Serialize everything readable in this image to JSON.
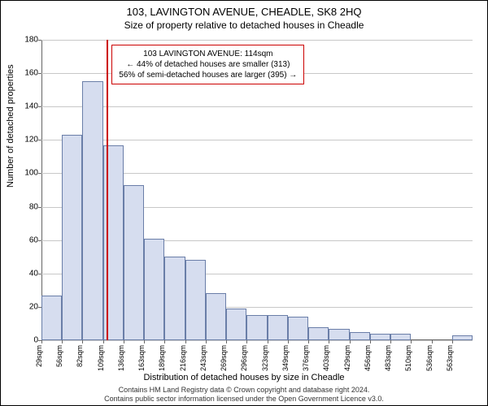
{
  "title": "103, LAVINGTON AVENUE, CHEADLE, SK8 2HQ",
  "subtitle": "Size of property relative to detached houses in Cheadle",
  "ylabel": "Number of detached properties",
  "xlabel": "Distribution of detached houses by size in Cheadle",
  "footer_line1": "Contains HM Land Registry data © Crown copyright and database right 2024.",
  "footer_line2": "Contains public sector information licensed under the Open Government Licence v3.0.",
  "chart": {
    "type": "histogram",
    "ylim": [
      0,
      180
    ],
    "ytick_step": 20,
    "x_bin_width_sqm": 27,
    "x_start_sqm": 29,
    "x_end_sqm": 563,
    "bar_fill": "#d6ddef",
    "bar_stroke": "#6a7ea8",
    "grid_color": "#c8c8c8",
    "background": "#ffffff",
    "marker_color": "#cc0000",
    "marker_x_sqm": 114,
    "categories_sqm": [
      29,
      56,
      82,
      109,
      136,
      163,
      189,
      216,
      243,
      269,
      296,
      323,
      349,
      376,
      403,
      429,
      456,
      483,
      510,
      536,
      563
    ],
    "values": [
      27,
      123,
      155,
      117,
      93,
      61,
      50,
      48,
      28,
      19,
      15,
      15,
      14,
      8,
      7,
      5,
      4,
      4,
      0,
      0,
      3
    ]
  },
  "annotation": {
    "line1": "103 LAVINGTON AVENUE: 114sqm",
    "line2": "← 44% of detached houses are smaller (313)",
    "line3": "56% of semi-detached houses are larger (395) →"
  }
}
